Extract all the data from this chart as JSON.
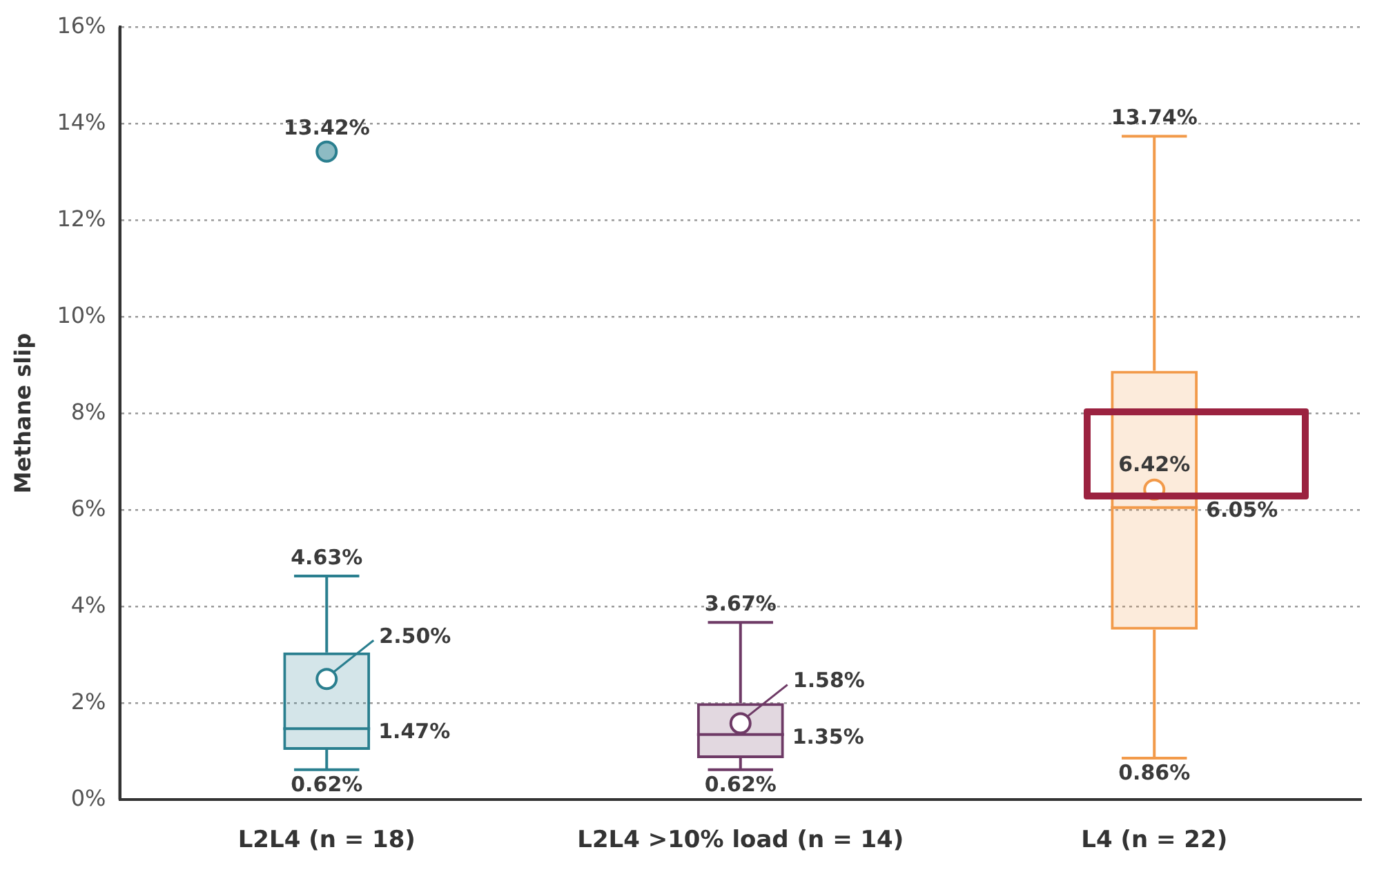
{
  "chart_data": {
    "type": "box",
    "ylabel": "Methane slip",
    "categories": [
      "L2L4 (n = 18)",
      "L2L4 >10% load (n = 14)",
      "L4 (n = 22)"
    ],
    "colors": [
      "#2a7f8f",
      "#6e3a66",
      "#f29a4a"
    ],
    "boxes": [
      {
        "low": 0.62,
        "q1": 1.03,
        "median": 1.47,
        "q3": 3.05,
        "high": 4.63,
        "outliers": [
          13.42
        ]
      },
      {
        "low": 0.62,
        "q1": 0.86,
        "median": 1.35,
        "q3": 2.0,
        "high": 3.67
      },
      {
        "low": 0.86,
        "q1": 3.52,
        "median": 6.05,
        "q3": 8.88,
        "high": 13.74
      }
    ],
    "series": [
      {
        "type": "scatter",
        "x": [
          "L2L4 (n = 18)",
          "L2L4 >10% load (n = 14)",
          "L4 (n = 22)"
        ],
        "values": [
          2.5,
          1.58,
          6.42
        ],
        "colors": [
          "#2a7f8f",
          "#6e3a66",
          "#f29a4a"
        ],
        "marker": "circle",
        "value_labels": [
          "2.50%",
          "1.58%",
          "6.42%"
        ]
      }
    ],
    "ylim": [
      0,
      16
    ],
    "yticks": [
      {
        "value": 0,
        "label": "0%"
      },
      {
        "value": 2,
        "label": "2%"
      },
      {
        "value": 4,
        "label": "4%"
      },
      {
        "value": 6,
        "label": "6%"
      },
      {
        "value": 8,
        "label": "8%"
      },
      {
        "value": 10,
        "label": "10%"
      },
      {
        "value": 12,
        "label": "12%"
      },
      {
        "value": 14,
        "label": "14%"
      },
      {
        "value": 16,
        "label": "16%"
      }
    ],
    "grid": "y",
    "annotations": [
      "13.42%",
      {
        "text": "4.63%",
        "x": "L2L4 (n = 18)",
        "y": 4.63
      },
      "1.47%",
      {
        "text": "0.62%",
        "x": "L2L4 (n = 18)",
        "y": 0.62
      },
      {
        "text": "3.67%",
        "x": "L2L4 >10% load (n = 14)",
        "y": 3.67
      },
      "1.35%",
      {
        "text": "0.62%",
        "x": "L2L4 >10% load (n = 14)",
        "y": 0.62
      },
      {
        "text": "13.74%",
        "x": "L4 (n = 22)",
        "y": 13.74
      },
      "6.05%",
      {
        "text": "0.86%",
        "x": "L4 (n = 22)",
        "y": 0.86
      }
    ]
  }
}
